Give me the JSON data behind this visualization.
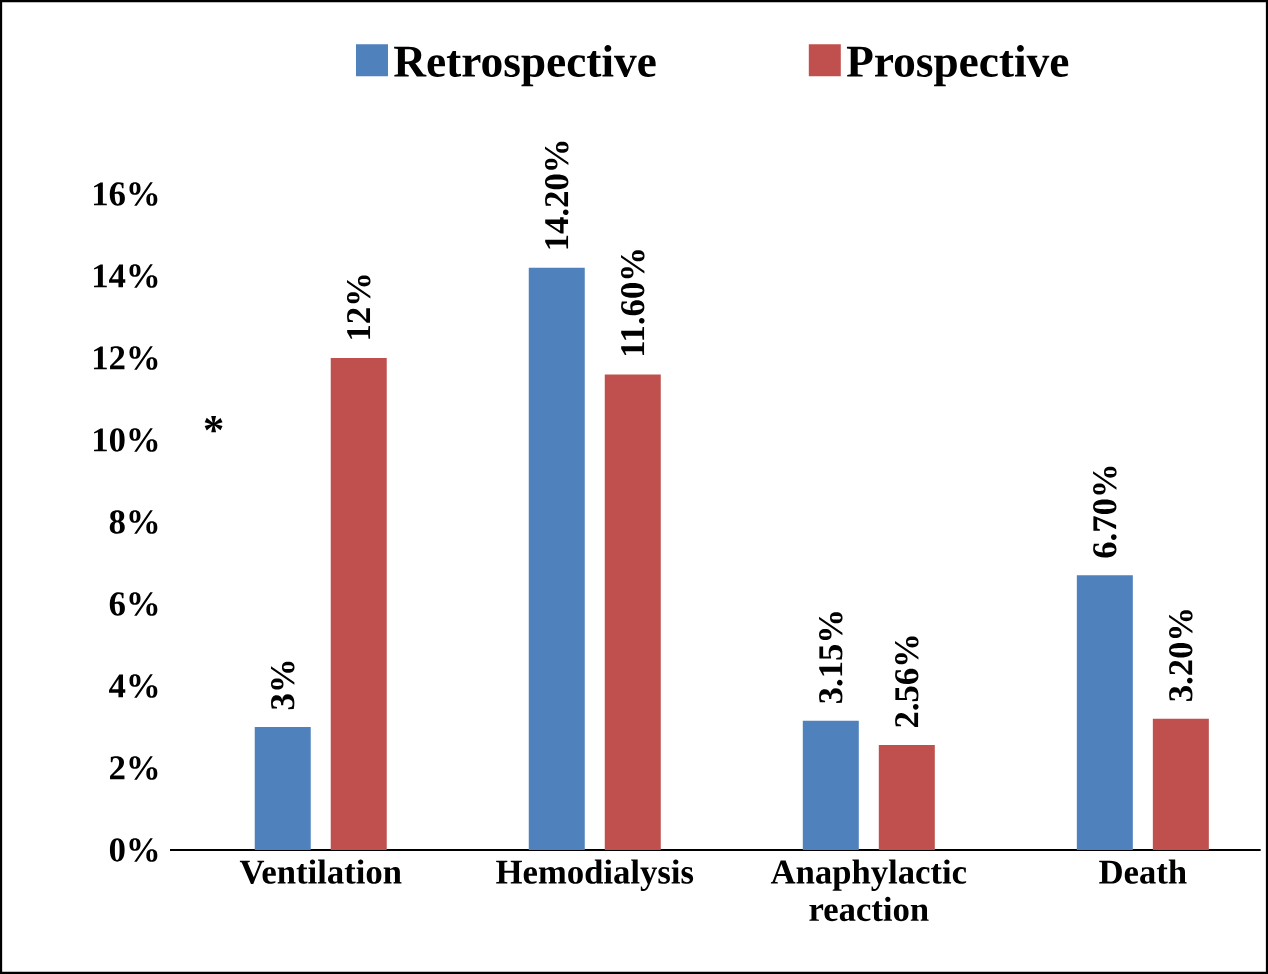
{
  "chart_data": {
    "type": "bar",
    "categories": [
      "Ventilation",
      "Hemodialysis",
      "Anaphylactic reaction",
      "Death"
    ],
    "series": [
      {
        "name": "Retrospective",
        "color": "#4f81bd",
        "values": [
          3,
          14.2,
          3.15,
          6.7
        ],
        "value_labels": [
          "3%",
          "14.20%",
          "3.15%",
          "6.70%"
        ]
      },
      {
        "name": "Prospective",
        "color": "#c0504d",
        "values": [
          12,
          11.6,
          2.56,
          3.2
        ],
        "value_labels": [
          "12%",
          "11.60%",
          "2.56%",
          "3.20%"
        ]
      }
    ],
    "ylim": [
      0,
      16
    ],
    "yticks": [
      {
        "value": 0,
        "label": "0%"
      },
      {
        "value": 2,
        "label": "2%"
      },
      {
        "value": 4,
        "label": "4%"
      },
      {
        "value": 6,
        "label": "6%"
      },
      {
        "value": 8,
        "label": "8%"
      },
      {
        "value": 10,
        "label": "10%"
      },
      {
        "value": 12,
        "label": "12%"
      },
      {
        "value": 14,
        "label": "14%"
      },
      {
        "value": 16,
        "label": "16%"
      }
    ],
    "grid": false,
    "legend": "top",
    "annotations": [
      "*"
    ]
  }
}
